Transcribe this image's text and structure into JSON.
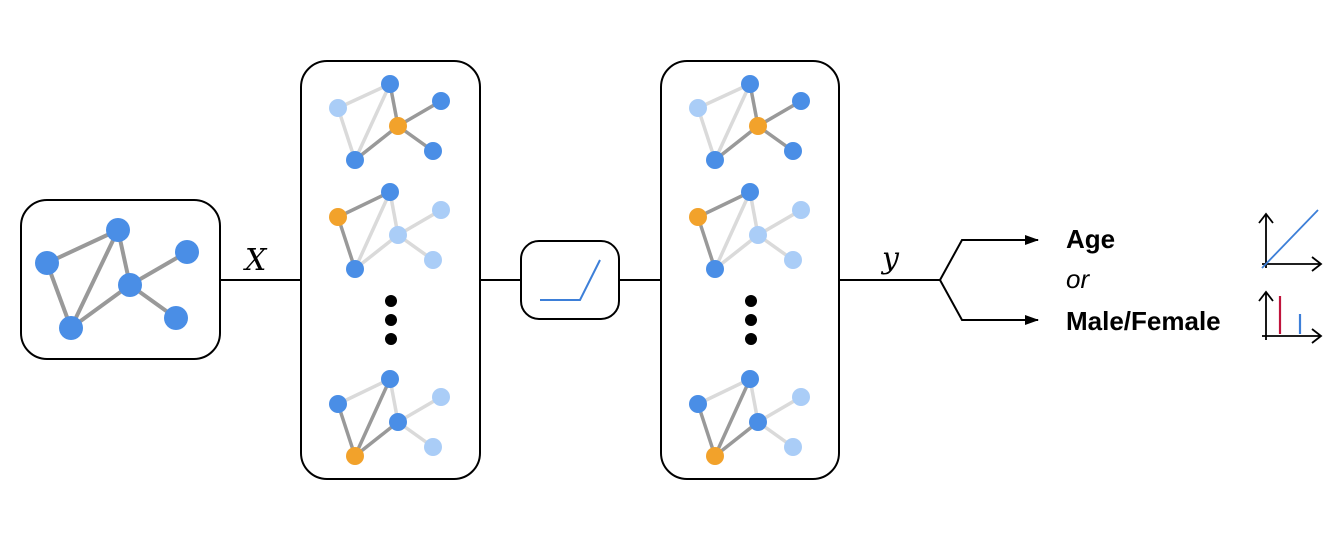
{
  "labels": {
    "input_symbol": "X",
    "output_symbol": "y",
    "target_regression": "Age",
    "connector": "or",
    "target_classification": "Male/Female"
  },
  "colors": {
    "node_primary": "#4a8ee6",
    "node_light": "#aacdf7",
    "node_highlight": "#f2a22b",
    "edge_dark": "#999999",
    "edge_light": "#dadada",
    "bar_red": "#c0143c",
    "activation_line": "#3d7fd8"
  }
}
